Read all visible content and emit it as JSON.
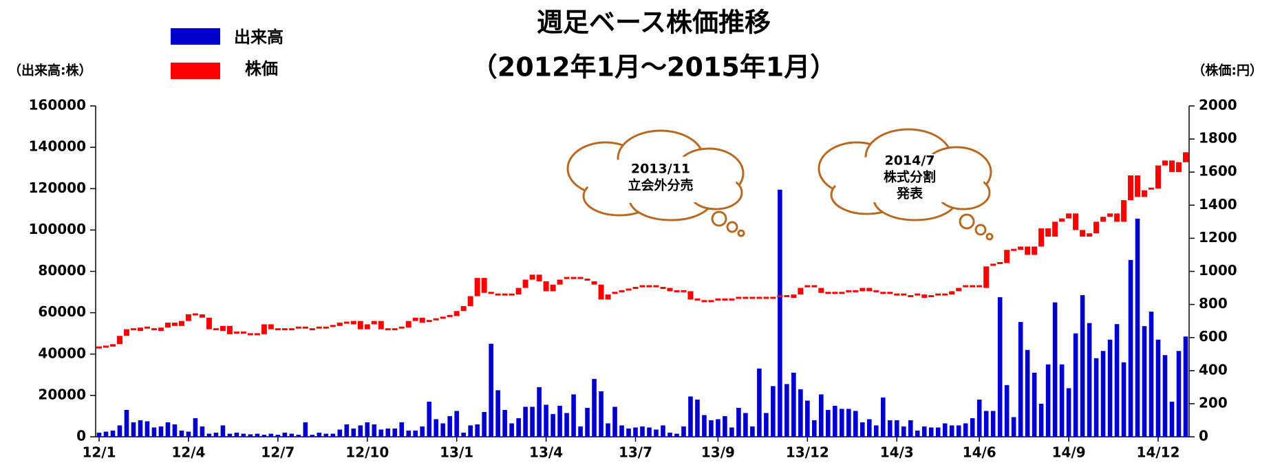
{
  "chart_data": {
    "type": "combo",
    "title": "週足ベース株価推移",
    "subtitle": "（2012年1月～2015年1月）",
    "ylabel": "（出来高:株）",
    "y2label": "（株価:円）",
    "grid": false,
    "ylim": [
      0,
      160000
    ],
    "yticks": [
      0,
      20000,
      40000,
      60000,
      80000,
      100000,
      120000,
      140000,
      160000
    ],
    "y2lim": [
      0,
      2000
    ],
    "y2ticks": [
      0,
      200,
      400,
      600,
      800,
      1000,
      1200,
      1400,
      1600,
      1800,
      2000
    ],
    "annotations": [
      {
        "lines": [
          "2013/11",
          "立会外分売"
        ]
      },
      {
        "lines": [
          "2014/7",
          "株式分割",
          "発表"
        ]
      }
    ],
    "categories": [
      "12/1",
      null,
      null,
      null,
      null,
      null,
      null,
      null,
      null,
      null,
      null,
      null,
      null,
      "12/4",
      null,
      null,
      null,
      null,
      null,
      null,
      null,
      null,
      null,
      null,
      null,
      null,
      "12/7",
      null,
      null,
      null,
      null,
      null,
      null,
      null,
      null,
      null,
      null,
      null,
      null,
      "12/10",
      null,
      null,
      null,
      null,
      null,
      null,
      null,
      null,
      null,
      null,
      null,
      null,
      "13/1",
      null,
      null,
      null,
      null,
      null,
      null,
      null,
      null,
      null,
      null,
      null,
      null,
      "13/4",
      null,
      null,
      null,
      null,
      null,
      null,
      null,
      null,
      null,
      null,
      null,
      null,
      "13/7",
      null,
      null,
      null,
      null,
      null,
      null,
      null,
      null,
      null,
      null,
      null,
      "13/9",
      null,
      null,
      null,
      null,
      null,
      null,
      null,
      null,
      null,
      null,
      null,
      null,
      "13/12",
      null,
      null,
      null,
      null,
      null,
      null,
      null,
      null,
      null,
      null,
      null,
      null,
      "14/3",
      null,
      null,
      null,
      null,
      null,
      null,
      null,
      null,
      null,
      null,
      null,
      "14/6",
      null,
      null,
      null,
      null,
      null,
      null,
      null,
      null,
      null,
      null,
      null,
      null,
      "14/9",
      null,
      null,
      null,
      null,
      null,
      null,
      null,
      null,
      null,
      null,
      null,
      null,
      "14/12",
      null,
      null,
      null,
      null
    ],
    "series": [
      {
        "name": "出来高",
        "color": "#0000cc",
        "values": [
          2000,
          2500,
          3000,
          5500,
          13000,
          7000,
          8000,
          7500,
          4500,
          5000,
          7000,
          6000,
          3000,
          2500,
          9000,
          5000,
          1500,
          2000,
          5500,
          1500,
          2000,
          1500,
          1200,
          1500,
          1000,
          1500,
          1000,
          2000,
          1500,
          1000,
          7000,
          1000,
          2000,
          1500,
          1500,
          3500,
          6000,
          4000,
          5500,
          7000,
          6000,
          3500,
          4000,
          4000,
          7000,
          3000,
          3000,
          5000,
          17000,
          8500,
          6500,
          10000,
          12500,
          2000,
          5500,
          6000,
          12000,
          45000,
          22500,
          13000,
          6500,
          9000,
          14500,
          14500,
          24000,
          15500,
          11000,
          15000,
          11500,
          20500,
          5000,
          14000,
          28000,
          22000,
          6500,
          14500,
          5500,
          4000,
          4500,
          5000,
          4500,
          3500,
          5500,
          2000,
          1500,
          5000,
          19500,
          18000,
          10500,
          8000,
          8500,
          10000,
          4500,
          14000,
          11500,
          5000,
          33000,
          11500,
          24500,
          119500,
          25500,
          31000,
          23000,
          17500,
          8000,
          20500,
          13000,
          15000,
          13500,
          13500,
          12500,
          7000,
          8500,
          5500,
          19000,
          8000,
          8000,
          5000,
          8000,
          3000,
          5000,
          4500,
          4500,
          6500,
          5500,
          5500,
          6500,
          9000,
          18000,
          12500,
          12500,
          67500,
          25000,
          9500,
          55500,
          42000,
          31000,
          16000,
          35000,
          65000,
          35000,
          23500,
          50000,
          68500,
          55000,
          38000,
          41500,
          47000,
          54500,
          36000,
          85500,
          105500,
          53500,
          60500,
          47000,
          39500,
          17000,
          41500,
          48500
        ]
      },
      {
        "name": "株価",
        "color": "#ff0000",
        "axis": "y2",
        "open": [
          530,
          540,
          545,
          560,
          610,
          650,
          640,
          660,
          650,
          640,
          660,
          690,
          670,
          700,
          740,
          740,
          720,
          650,
          640,
          670,
          620,
          630,
          620,
          620,
          620,
          680,
          650,
          650,
          650,
          650,
          660,
          650,
          650,
          660,
          660,
          670,
          690,
          680,
          700,
          650,
          680,
          700,
          650,
          650,
          650,
          660,
          700,
          720,
          690,
          700,
          710,
          720,
          730,
          760,
          790,
          850,
          960,
          870,
          860,
          860,
          860,
          860,
          900,
          950,
          980,
          940,
          880,
          920,
          950,
          960,
          960,
          950,
          940,
          920,
          830,
          860,
          870,
          880,
          890,
          900,
          910,
          910,
          900,
          900,
          880,
          880,
          880,
          830,
          820,
          820,
          820,
          830,
          820,
          830,
          840,
          840,
          840,
          830,
          840,
          840,
          850,
          840,
          860,
          900,
          910,
          900,
          870,
          860,
          870,
          870,
          880,
          880,
          900,
          880,
          870,
          870,
          860,
          860,
          850,
          850,
          860,
          840,
          850,
          860,
          860,
          880,
          900,
          910,
          910,
          900,
          1030,
          1040,
          1050,
          1130,
          1130,
          1150,
          1100,
          1150,
          1260,
          1210,
          1300,
          1320,
          1350,
          1250,
          1210,
          1230,
          1300,
          1330,
          1350,
          1300,
          1430,
          1580,
          1450,
          1490,
          1500,
          1640,
          1670,
          1600,
          1660
        ],
        "close": [
          540,
          545,
          560,
          610,
          650,
          640,
          660,
          650,
          640,
          660,
          690,
          670,
          700,
          740,
          740,
          720,
          650,
          640,
          670,
          620,
          630,
          620,
          620,
          620,
          680,
          650,
          650,
          650,
          650,
          660,
          650,
          650,
          660,
          660,
          670,
          690,
          680,
          700,
          650,
          680,
          700,
          650,
          650,
          650,
          660,
          700,
          720,
          690,
          700,
          710,
          720,
          730,
          760,
          790,
          850,
          960,
          870,
          860,
          860,
          860,
          860,
          900,
          950,
          980,
          940,
          880,
          920,
          950,
          960,
          960,
          950,
          940,
          920,
          830,
          860,
          870,
          880,
          890,
          900,
          910,
          910,
          900,
          900,
          880,
          880,
          880,
          830,
          820,
          820,
          820,
          830,
          820,
          830,
          840,
          840,
          840,
          830,
          840,
          840,
          850,
          840,
          860,
          900,
          910,
          900,
          870,
          860,
          870,
          870,
          880,
          880,
          900,
          880,
          870,
          870,
          860,
          860,
          850,
          850,
          860,
          840,
          850,
          860,
          860,
          880,
          900,
          910,
          910,
          900,
          1030,
          1040,
          1050,
          1130,
          1130,
          1150,
          1100,
          1150,
          1260,
          1210,
          1300,
          1320,
          1350,
          1250,
          1210,
          1230,
          1300,
          1330,
          1350,
          1300,
          1430,
          1580,
          1450,
          1490,
          1500,
          1640,
          1670,
          1600,
          1660,
          1720
        ]
      }
    ]
  }
}
